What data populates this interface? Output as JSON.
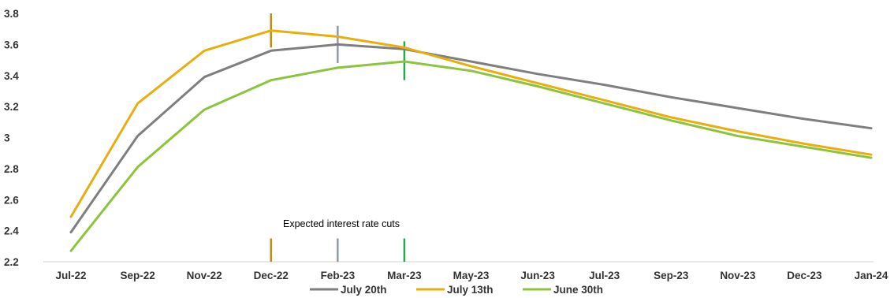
{
  "chart_data": {
    "type": "line",
    "title": "",
    "xlabel": "",
    "ylabel": "",
    "categories": [
      "Jul-22",
      "Sep-22",
      "Nov-22",
      "Dec-22",
      "Feb-23",
      "Mar-23",
      "May-23",
      "Jun-23",
      "Jul-23",
      "Sep-23",
      "Nov-23",
      "Dec-23",
      "Jan-24"
    ],
    "ylim": [
      2.2,
      3.8
    ],
    "yticks": [
      2.2,
      2.4,
      2.6,
      2.8,
      3,
      3.2,
      3.4,
      3.6,
      3.8
    ],
    "ytick_labels": [
      "2.2",
      "2.4",
      "2.6",
      "2.8",
      "3",
      "3.2",
      "3.4",
      "3.6",
      "3.8"
    ],
    "grid": false,
    "legend_position": "bottom",
    "series": [
      {
        "name": "July 20th",
        "color": "#7f7f7f",
        "values": [
          2.39,
          3.01,
          3.39,
          3.56,
          3.6,
          3.57,
          3.49,
          3.41,
          3.34,
          3.26,
          3.19,
          3.12,
          3.06
        ]
      },
      {
        "name": "July 13th",
        "color": "#e8ae0f",
        "values": [
          2.49,
          3.22,
          3.56,
          3.69,
          3.65,
          3.58,
          3.46,
          3.35,
          3.24,
          3.13,
          3.04,
          2.96,
          2.89
        ]
      },
      {
        "name": "June 30th",
        "color": "#8cc43c",
        "values": [
          2.27,
          2.81,
          3.18,
          3.37,
          3.45,
          3.49,
          3.43,
          3.33,
          3.22,
          3.11,
          3.01,
          2.94,
          2.87
        ]
      }
    ],
    "annotation_text": "Expected interest rate cuts",
    "markers": [
      {
        "category": "Dec-22",
        "color": "#c08a1c",
        "top": 3.8,
        "bottom": 3.58
      },
      {
        "category": "Feb-23",
        "color": "#8a9cb4",
        "top": 3.72,
        "bottom": 3.48
      },
      {
        "category": "Mar-23",
        "color": "#1fae4b",
        "top": 3.62,
        "bottom": 3.37
      },
      {
        "category": "Dec-22",
        "color": "#c08a1c",
        "top": 2.35,
        "bottom": 2.2
      },
      {
        "category": "Feb-23",
        "color": "#8a9cb4",
        "top": 2.35,
        "bottom": 2.2
      },
      {
        "category": "Mar-23",
        "color": "#1fae4b",
        "top": 2.35,
        "bottom": 2.2
      }
    ]
  }
}
